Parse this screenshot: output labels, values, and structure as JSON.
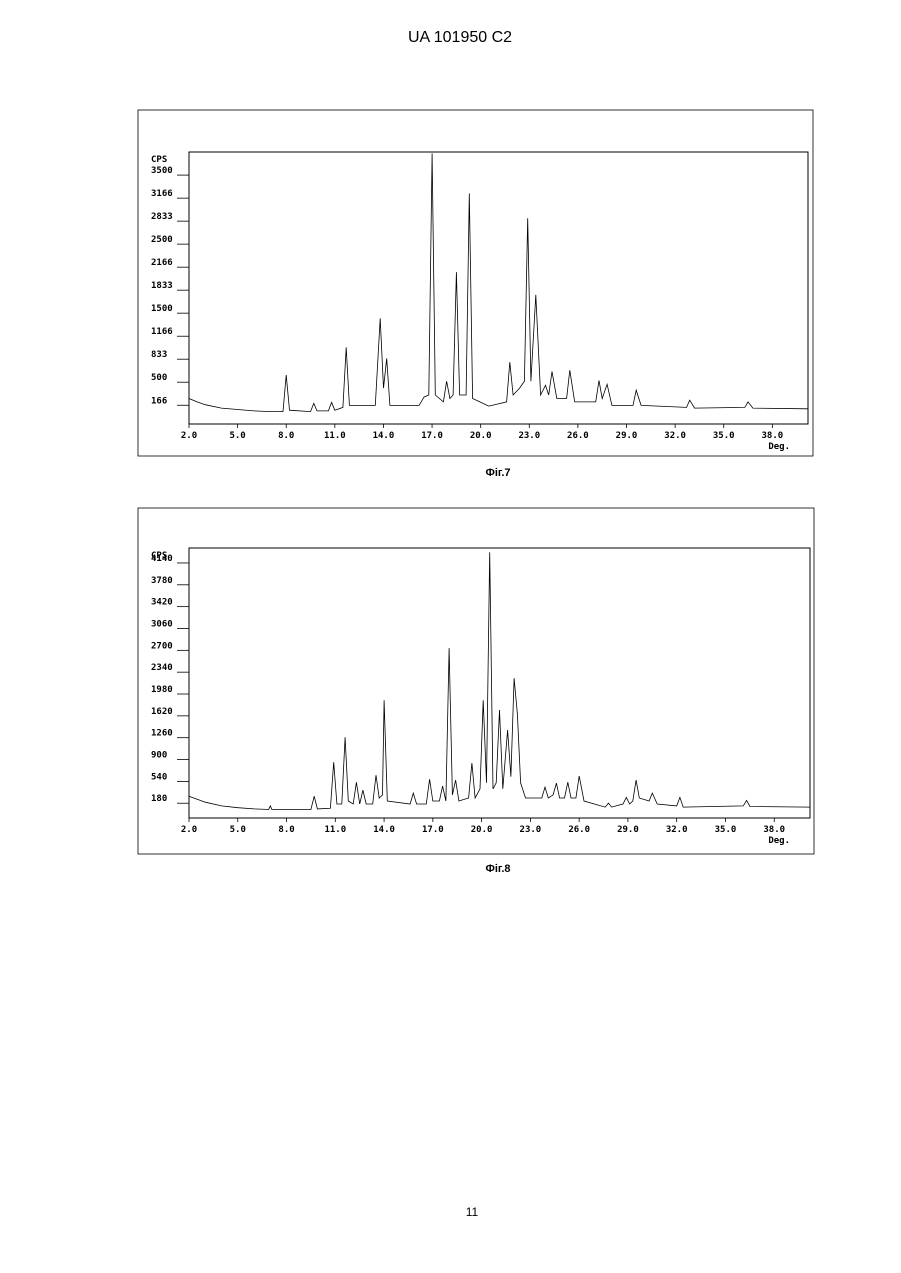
{
  "header": "UA   101950   C2",
  "chart_data": [
    {
      "type": "line",
      "caption": "Фіг.7",
      "y_label": "CPS",
      "x_label": "Deg.",
      "color": "#000000",
      "xlim": [
        2,
        40.2
      ],
      "ylim": [
        -120,
        3820
      ],
      "xticks": [
        {
          "value": 2,
          "label": "2.0"
        },
        {
          "value": 5,
          "label": "5.0"
        },
        {
          "value": 8,
          "label": "8.0"
        },
        {
          "value": 11,
          "label": "11.0"
        },
        {
          "value": 14,
          "label": "14.0"
        },
        {
          "value": 17,
          "label": "17.0"
        },
        {
          "value": 20,
          "label": "20.0"
        },
        {
          "value": 23,
          "label": "23.0"
        },
        {
          "value": 26,
          "label": "26.0"
        },
        {
          "value": 29,
          "label": "29.0"
        },
        {
          "value": 32,
          "label": "32.0"
        },
        {
          "value": 35,
          "label": "35.0"
        },
        {
          "value": 38,
          "label": "38.0"
        }
      ],
      "yticks": [
        3500,
        3166,
        2833,
        2500,
        2166,
        1833,
        1500,
        1166,
        833,
        500,
        166
      ],
      "x": [
        2,
        2.5,
        3,
        4,
        5,
        6,
        7,
        7.8,
        8.0,
        8.2,
        9.5,
        9.7,
        9.9,
        10.6,
        10.8,
        11.0,
        11.5,
        11.7,
        11.9,
        13.5,
        13.8,
        14.0,
        14.2,
        14.4,
        16.2,
        16.5,
        16.8,
        17.0,
        17.2,
        17.7,
        17.9,
        18.1,
        18.3,
        18.5,
        18.7,
        19.1,
        19.3,
        19.5,
        20.5,
        21.6,
        21.8,
        22.0,
        22.4,
        22.7,
        22.9,
        23.1,
        23.4,
        23.7,
        24.0,
        24.2,
        24.4,
        24.7,
        25.3,
        25.5,
        25.8,
        27.1,
        27.3,
        27.5,
        27.8,
        28.1,
        29.4,
        29.6,
        29.9,
        32.7,
        32.9,
        33.2,
        36.3,
        36.5,
        36.8,
        40.2
      ],
      "values": [
        250,
        200,
        160,
        110,
        90,
        70,
        60,
        60,
        590,
        80,
        60,
        180,
        70,
        70,
        195,
        80,
        120,
        990,
        150,
        150,
        1410,
        400,
        830,
        150,
        150,
        270,
        300,
        3800,
        300,
        200,
        500,
        250,
        300,
        2080,
        300,
        300,
        3220,
        250,
        140,
        200,
        775,
        300,
        400,
        500,
        2860,
        500,
        1750,
        300,
        440,
        300,
        640,
        250,
        250,
        660,
        200,
        200,
        510,
        250,
        455,
        150,
        150,
        370,
        150,
        120,
        225,
        110,
        120,
        200,
        110,
        100
      ]
    },
    {
      "type": "line",
      "caption": "Фіг.8",
      "y_label": "CPS",
      "x_label": "Deg.",
      "color": "#000000",
      "xlim": [
        2,
        40.2
      ],
      "ylim": [
        -80,
        4370
      ],
      "xticks": [
        {
          "value": 2,
          "label": "2.0"
        },
        {
          "value": 5,
          "label": "5.0"
        },
        {
          "value": 8,
          "label": "8.0"
        },
        {
          "value": 11,
          "label": "11.0"
        },
        {
          "value": 14,
          "label": "14.0"
        },
        {
          "value": 17,
          "label": "17.0"
        },
        {
          "value": 20,
          "label": "20.0"
        },
        {
          "value": 23,
          "label": "23.0"
        },
        {
          "value": 26,
          "label": "26.0"
        },
        {
          "value": 29,
          "label": "29.0"
        },
        {
          "value": 32,
          "label": "32.0"
        },
        {
          "value": 35,
          "label": "35.0"
        },
        {
          "value": 38,
          "label": "38.0"
        }
      ],
      "yticks": [
        4140,
        3780,
        3420,
        3060,
        2700,
        2340,
        1980,
        1620,
        1260,
        900,
        540,
        180
      ],
      "x": [
        2,
        3,
        4,
        5,
        6,
        6.9,
        7.0,
        7.1,
        9.5,
        9.7,
        9.9,
        10.7,
        10.9,
        11.1,
        11.4,
        11.6,
        11.8,
        12.1,
        12.3,
        12.5,
        12.7,
        12.9,
        13.3,
        13.5,
        13.7,
        13.9,
        14.0,
        14.2,
        15.6,
        15.8,
        16.0,
        16.6,
        16.8,
        17.0,
        17.4,
        17.6,
        17.8,
        18.0,
        18.2,
        18.4,
        18.6,
        19.2,
        19.4,
        19.6,
        19.9,
        20.1,
        20.3,
        20.5,
        20.7,
        20.9,
        21.1,
        21.3,
        21.6,
        21.8,
        22.0,
        22.2,
        22.4,
        22.7,
        23.7,
        23.9,
        24.1,
        24.4,
        24.6,
        24.8,
        25.1,
        25.3,
        25.5,
        25.8,
        26.0,
        26.3,
        27.6,
        27.8,
        28.0,
        28.7,
        28.9,
        29.1,
        29.3,
        29.5,
        29.7,
        30.3,
        30.5,
        30.8,
        32.0,
        32.2,
        32.4,
        36.1,
        36.3,
        36.5,
        40.2
      ],
      "values": [
        280,
        180,
        120,
        90,
        70,
        60,
        120,
        60,
        60,
        280,
        70,
        80,
        840,
        150,
        150,
        1250,
        200,
        150,
        510,
        150,
        380,
        150,
        150,
        625,
        250,
        300,
        1860,
        200,
        150,
        330,
        150,
        150,
        560,
        200,
        200,
        445,
        200,
        2720,
        300,
        545,
        200,
        250,
        825,
        250,
        400,
        1860,
        500,
        4300,
        400,
        500,
        1700,
        400,
        1370,
        600,
        2225,
        1630,
        500,
        250,
        250,
        430,
        250,
        300,
        495,
        250,
        250,
        510,
        250,
        250,
        610,
        200,
        100,
        165,
        100,
        150,
        260,
        150,
        200,
        545,
        250,
        200,
        330,
        150,
        120,
        260,
        100,
        120,
        210,
        110,
        100
      ]
    }
  ],
  "page_number": "11"
}
